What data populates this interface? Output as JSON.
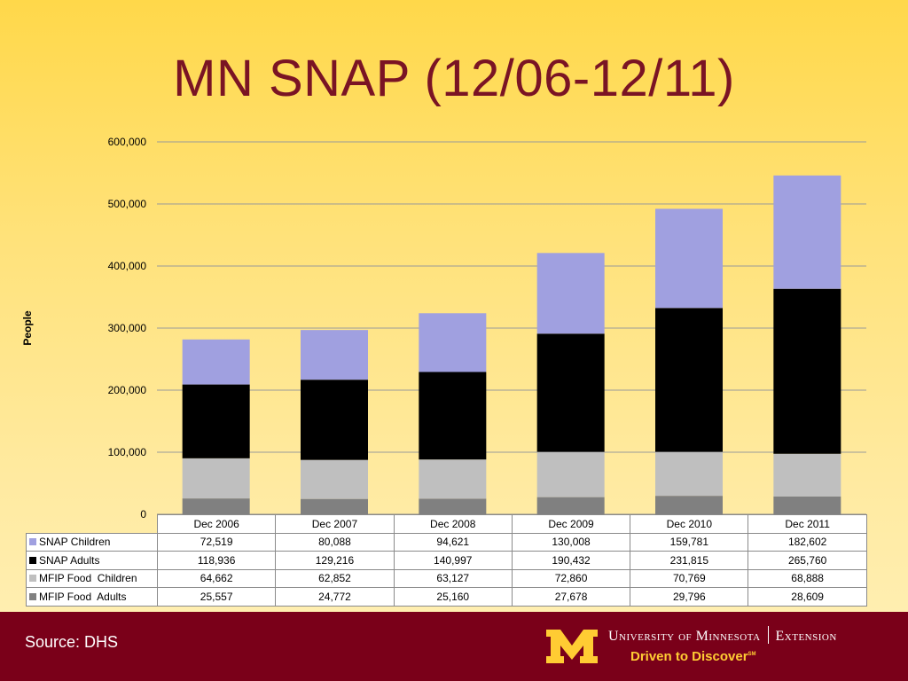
{
  "title": "MN SNAP (12/06-12/11)",
  "chart_data": {
    "type": "bar",
    "stacked": true,
    "categories": [
      "Dec 2006",
      "Dec 2007",
      "Dec 2008",
      "Dec 2009",
      "Dec 2010",
      "Dec 2011"
    ],
    "series": [
      {
        "name": "MFIP Food  Adults",
        "color": "#808080",
        "values": [
          25557,
          24772,
          25160,
          27678,
          29796,
          28609
        ]
      },
      {
        "name": "MFIP Food  Children",
        "color": "#bfbfbf",
        "values": [
          64662,
          62852,
          63127,
          72860,
          70769,
          68888
        ]
      },
      {
        "name": "SNAP Adults",
        "color": "#000000",
        "values": [
          118936,
          129216,
          140997,
          190432,
          231815,
          265760
        ]
      },
      {
        "name": "SNAP Children",
        "color": "#a0a0e0",
        "values": [
          72519,
          80088,
          94621,
          130008,
          159781,
          182602
        ]
      }
    ],
    "ylabel": "People",
    "ylim": [
      0,
      600000
    ],
    "yticks": [
      0,
      100000,
      200000,
      300000,
      400000,
      500000,
      600000
    ],
    "ytick_labels": [
      "0",
      "100,000",
      "200,000",
      "300,000",
      "400,000",
      "500,000",
      "600,000"
    ],
    "grid": true,
    "legend": "data table below chart"
  },
  "table": {
    "headers": [
      "Dec 2006",
      "Dec 2007",
      "Dec 2008",
      "Dec 2009",
      "Dec 2010",
      "Dec 2011"
    ],
    "rows": [
      {
        "label": "SNAP Children",
        "color": "#a0a0e0",
        "cells": [
          "72,519",
          "80,088",
          "94,621",
          "130,008",
          "159,781",
          "182,602"
        ]
      },
      {
        "label": "SNAP Adults",
        "color": "#000000",
        "cells": [
          "118,936",
          "129,216",
          "140,997",
          "190,432",
          "231,815",
          "265,760"
        ]
      },
      {
        "label": "MFIP Food  Children",
        "color": "#bfbfbf",
        "cells": [
          "64,662",
          "62,852",
          "63,127",
          "72,860",
          "70,769",
          "68,888"
        ]
      },
      {
        "label": "MFIP Food  Adults",
        "color": "#808080",
        "cells": [
          "25,557",
          "24,772",
          "25,160",
          "27,678",
          "29,796",
          "28,609"
        ]
      }
    ]
  },
  "footer": {
    "source": "Source: DHS",
    "org_university": "University of Minnesota",
    "org_unit": "Extension",
    "tagline": "Driven to Discover",
    "tagline_mark": "SM",
    "brand_maroon": "#7a0019",
    "brand_gold": "#ffcc33"
  }
}
